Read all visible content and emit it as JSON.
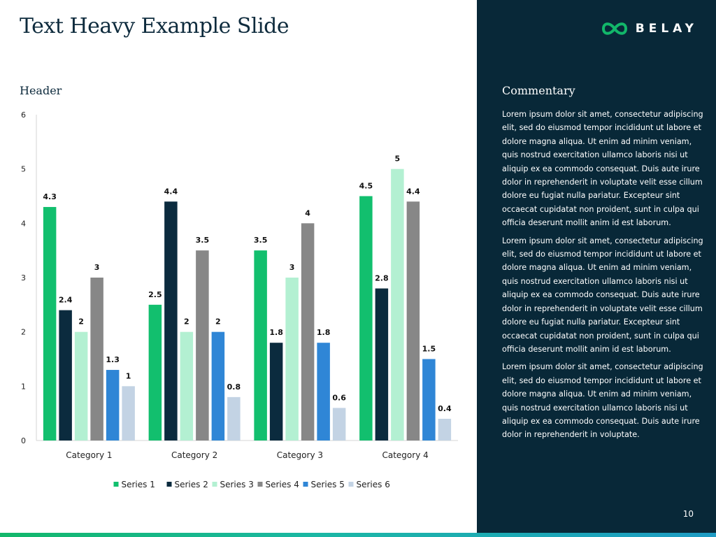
{
  "slide": {
    "title": "Text Heavy Example Slide",
    "chart_header": "Header",
    "page_number": "10"
  },
  "brand": {
    "name": "BELAY",
    "accent": "#12b76a",
    "panel": "#082838"
  },
  "sidebar": {
    "title": "Commentary",
    "paragraphs": [
      "Lorem ipsum dolor sit amet, consectetur adipiscing elit, sed do eiusmod tempor incididunt ut labore et dolore magna aliqua. Ut enim ad minim veniam, quis nostrud exercitation ullamco laboris nisi ut aliquip ex ea commodo consequat. Duis aute irure dolor in reprehenderit in voluptate velit esse cillum dolore eu fugiat nulla pariatur. Excepteur sint occaecat cupidatat non proident, sunt in culpa qui officia deserunt mollit anim id est laborum.",
      "Lorem ipsum dolor sit amet, consectetur adipiscing elit, sed do eiusmod tempor incididunt ut labore et dolore magna aliqua. Ut enim ad minim veniam, quis nostrud exercitation ullamco laboris nisi ut aliquip ex ea commodo consequat. Duis aute irure dolor in reprehenderit in voluptate velit esse cillum dolore eu fugiat nulla pariatur. Excepteur sint occaecat cupidatat non proident, sunt in culpa qui officia deserunt mollit anim id est laborum.",
      "Lorem ipsum dolor sit amet, consectetur adipiscing elit, sed do eiusmod tempor incididunt ut labore et dolore magna aliqua. Ut enim ad minim veniam, quis nostrud exercitation ullamco laboris nisi ut aliquip ex ea commodo consequat. Duis aute irure dolor in reprehenderit in voluptate."
    ]
  },
  "chart_data": {
    "type": "bar",
    "title": "Header",
    "xlabel": "",
    "ylabel": "",
    "ylim": [
      0,
      6
    ],
    "yticks": [
      0,
      1,
      2,
      3,
      4,
      5,
      6
    ],
    "grid": false,
    "legend_position": "bottom",
    "categories": [
      "Category 1",
      "Category 2",
      "Category 3",
      "Category 4"
    ],
    "series": [
      {
        "name": "Series 1",
        "color": "#12bf6e",
        "values": [
          4.3,
          2.5,
          3.5,
          4.5
        ]
      },
      {
        "name": "Series 2",
        "color": "#0b2b3e",
        "values": [
          2.4,
          4.4,
          1.8,
          2.8
        ]
      },
      {
        "name": "Series 3",
        "color": "#b3f0d2",
        "values": [
          2,
          2,
          3,
          5
        ]
      },
      {
        "name": "Series 4",
        "color": "#878787",
        "values": [
          3,
          3.5,
          4,
          4.4
        ]
      },
      {
        "name": "Series 5",
        "color": "#2f86d6",
        "values": [
          1.3,
          2,
          1.8,
          1.5
        ]
      },
      {
        "name": "Series 6",
        "color": "#c3d3e4",
        "values": [
          1,
          0.8,
          0.6,
          0.4
        ]
      }
    ]
  }
}
